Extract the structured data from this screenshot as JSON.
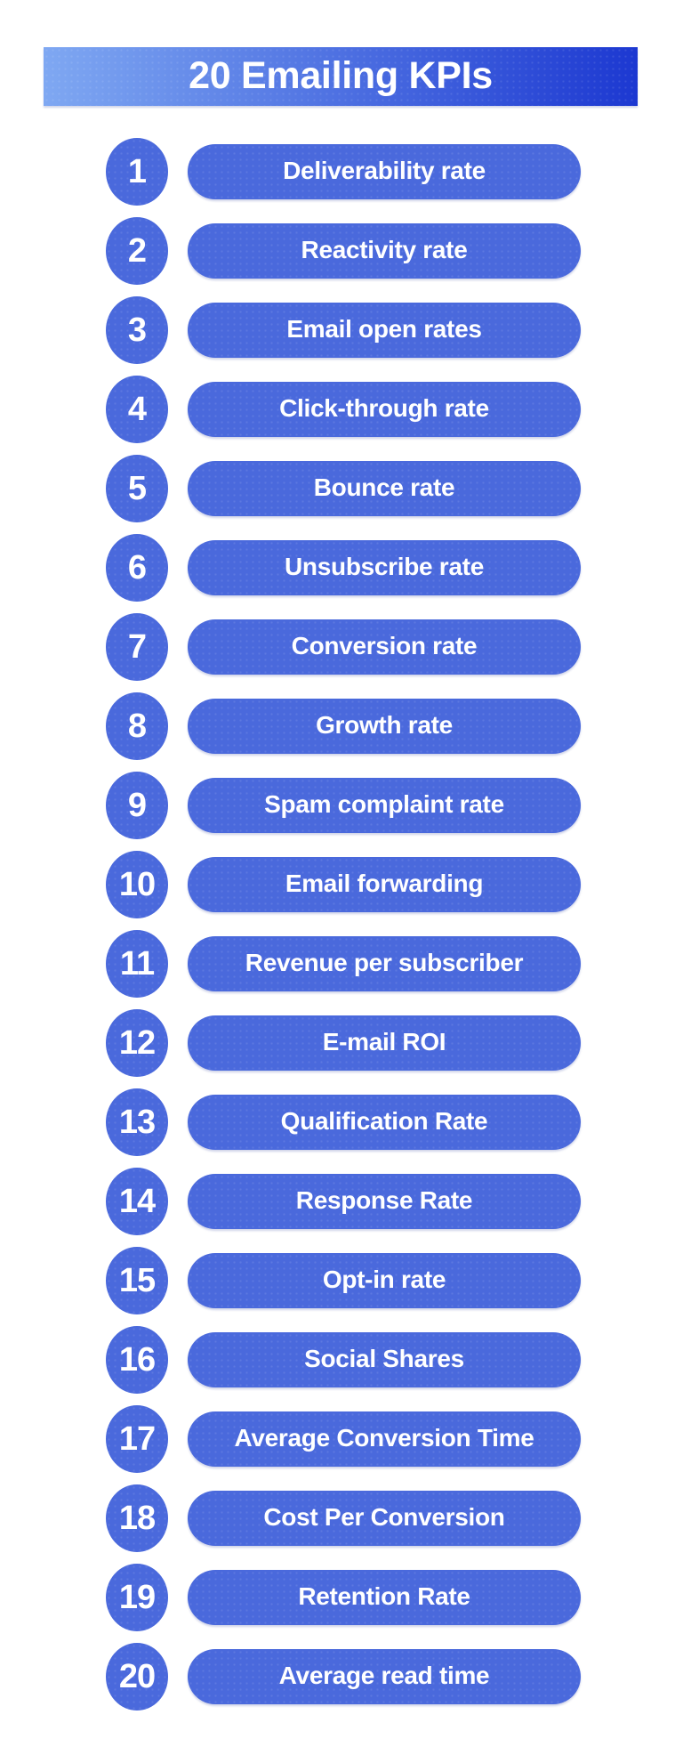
{
  "header": {
    "title": "20 Emailing KPIs",
    "gradient_left": "#7fa8f2",
    "gradient_right": "#1c38d1",
    "text_color": "#ffffff"
  },
  "list": {
    "item_color": "#4a69dc",
    "item_text_color": "#ffffff"
  },
  "kpis": [
    {
      "number": "1",
      "label": "Deliverability rate"
    },
    {
      "number": "2",
      "label": "Reactivity rate"
    },
    {
      "number": "3",
      "label": "Email open rates"
    },
    {
      "number": "4",
      "label": "Click-through rate"
    },
    {
      "number": "5",
      "label": "Bounce rate"
    },
    {
      "number": "6",
      "label": "Unsubscribe rate"
    },
    {
      "number": "7",
      "label": "Conversion rate"
    },
    {
      "number": "8",
      "label": "Growth rate"
    },
    {
      "number": "9",
      "label": "Spam complaint rate"
    },
    {
      "number": "10",
      "label": "Email forwarding"
    },
    {
      "number": "11",
      "label": "Revenue per subscriber"
    },
    {
      "number": "12",
      "label": "E-mail ROI"
    },
    {
      "number": "13",
      "label": "Qualification Rate"
    },
    {
      "number": "14",
      "label": "Response Rate"
    },
    {
      "number": "15",
      "label": "Opt-in rate"
    },
    {
      "number": "16",
      "label": "Social Shares"
    },
    {
      "number": "17",
      "label": "Average Conversion Time"
    },
    {
      "number": "18",
      "label": "Cost Per Conversion"
    },
    {
      "number": "19",
      "label": "Retention Rate"
    },
    {
      "number": "20",
      "label": "Average read time"
    }
  ]
}
